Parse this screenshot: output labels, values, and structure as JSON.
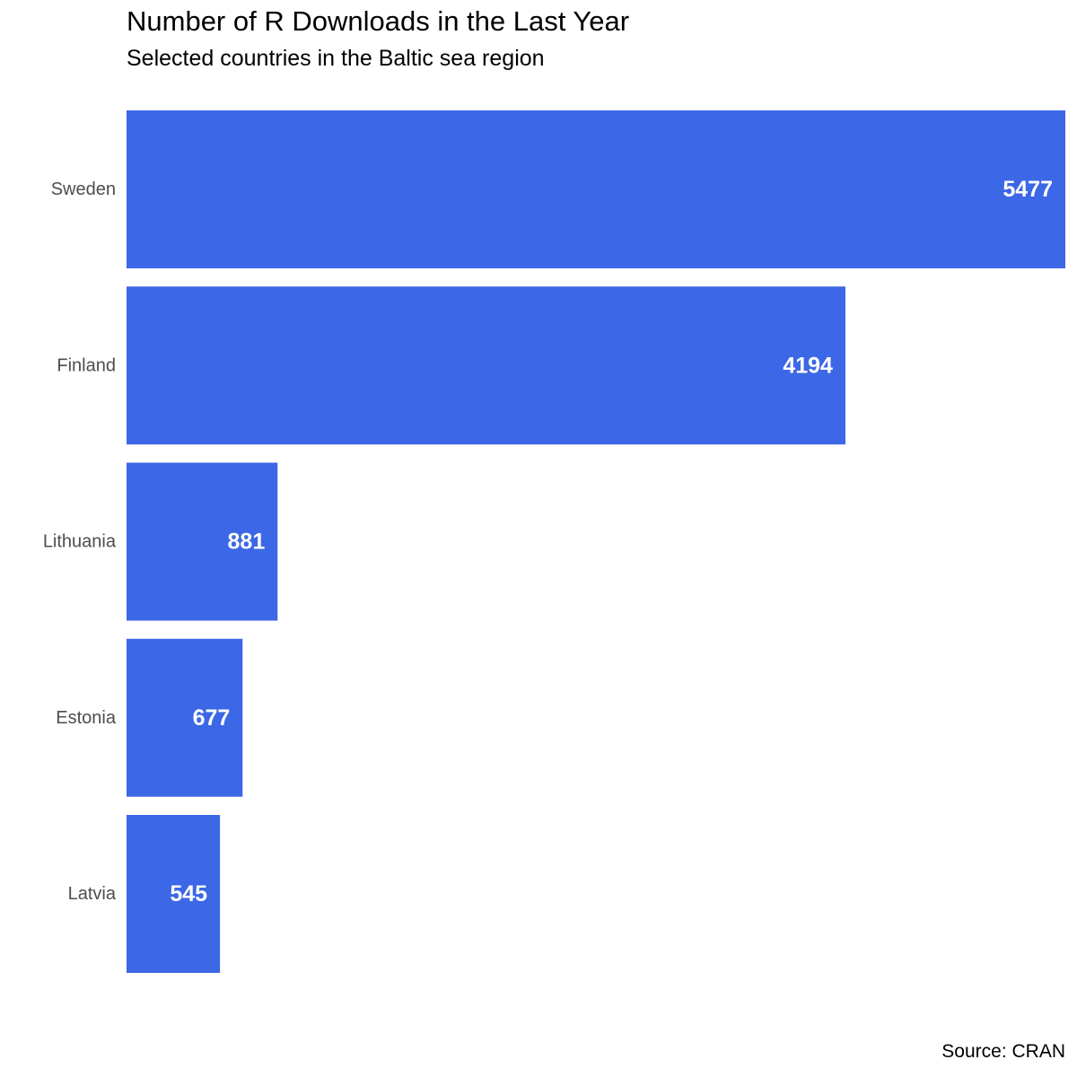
{
  "chart_data": {
    "type": "bar",
    "orientation": "horizontal",
    "title": "Number of R Downloads in the Last Year",
    "subtitle": "Selected countries in the Baltic sea region",
    "caption": "Source: CRAN",
    "categories": [
      "Sweden",
      "Finland",
      "Lithuania",
      "Estonia",
      "Latvia"
    ],
    "values": [
      5477,
      4194,
      881,
      677,
      545
    ],
    "data_labels": [
      "5477",
      "4194",
      "881",
      "677",
      "545"
    ],
    "xlabel": "",
    "ylabel": "",
    "xlim": [
      0,
      5477
    ],
    "grid": false,
    "legend": "none",
    "colors": {
      "bar": "#3C67E6",
      "bar_label": "#ffffff",
      "axis_text": "#4d4d4d"
    }
  }
}
